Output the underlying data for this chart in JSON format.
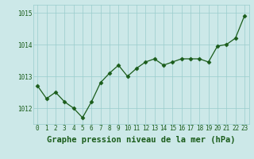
{
  "x": [
    0,
    1,
    2,
    3,
    4,
    5,
    6,
    7,
    8,
    9,
    10,
    11,
    12,
    13,
    14,
    15,
    16,
    17,
    18,
    19,
    20,
    21,
    22,
    23
  ],
  "y": [
    1012.7,
    1012.3,
    1012.5,
    1012.2,
    1012.0,
    1011.7,
    1012.2,
    1012.8,
    1013.1,
    1013.35,
    1013.0,
    1013.25,
    1013.45,
    1013.55,
    1013.35,
    1013.45,
    1013.55,
    1013.55,
    1013.55,
    1013.45,
    1013.95,
    1014.0,
    1014.2,
    1014.9
  ],
  "line_color": "#1a5c1a",
  "marker": "D",
  "marker_size": 2.5,
  "bg_color": "#cce8e8",
  "grid_color": "#99cccc",
  "xlabel": "Graphe pression niveau de la mer (hPa)",
  "xlabel_fontsize": 7.5,
  "xlabel_color": "#1a5c1a",
  "ylim": [
    1011.5,
    1015.25
  ],
  "yticks": [
    1012,
    1013,
    1014,
    1015
  ],
  "xticks": [
    0,
    1,
    2,
    3,
    4,
    5,
    6,
    7,
    8,
    9,
    10,
    11,
    12,
    13,
    14,
    15,
    16,
    17,
    18,
    19,
    20,
    21,
    22,
    23
  ],
  "tick_fontsize": 5.5,
  "tick_color": "#1a5c1a",
  "linewidth": 0.9
}
